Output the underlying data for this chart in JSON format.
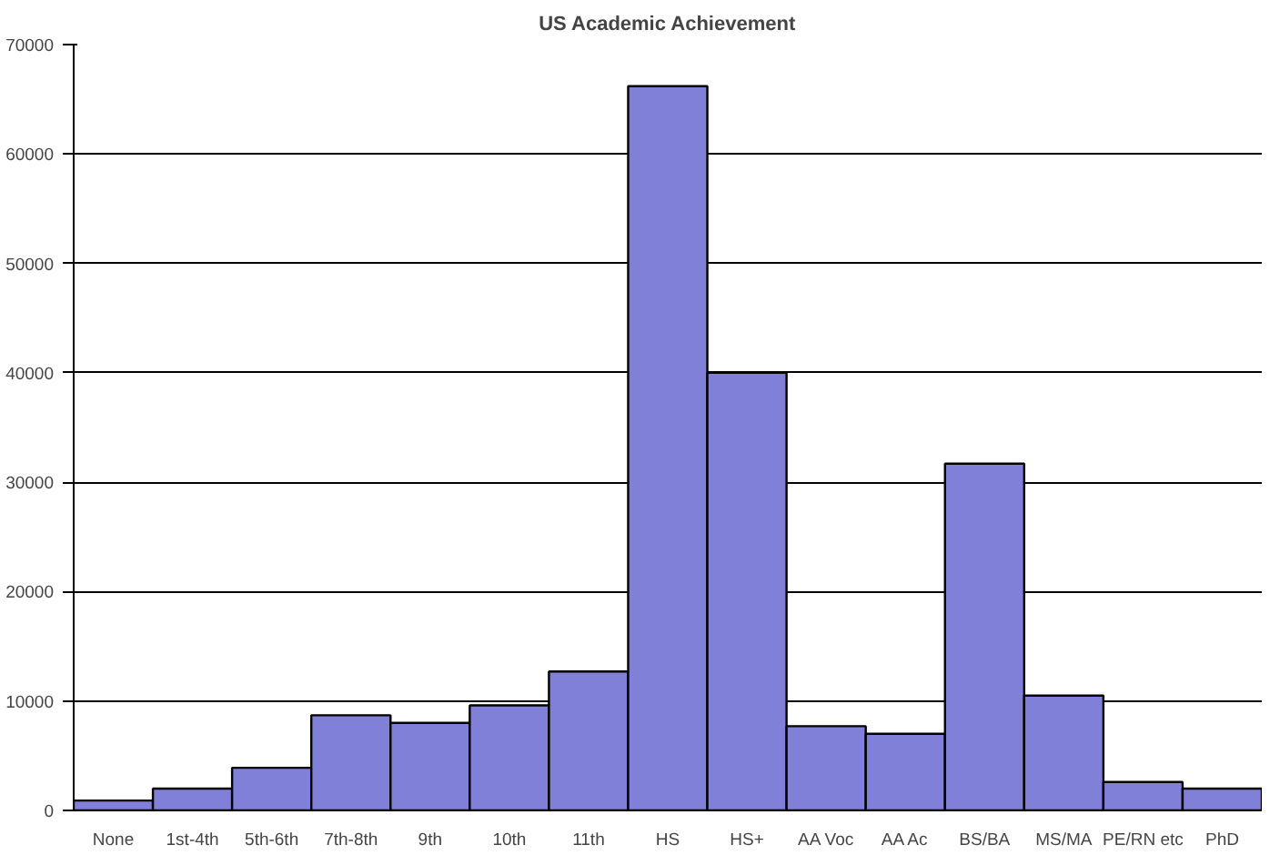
{
  "chart_data": {
    "type": "bar",
    "title": "US Academic Achievement",
    "categories": [
      "None",
      "1st-4th",
      "5th-6th",
      "7th-8th",
      "9th",
      "10th",
      "11th",
      "HS",
      "HS+",
      "AA Voc",
      "AA Ac",
      "BS/BA",
      "MS/MA",
      "PE/RN etc",
      "PhD"
    ],
    "values": [
      900,
      2000,
      3900,
      8700,
      8000,
      9600,
      12700,
      66200,
      40000,
      7700,
      7000,
      31700,
      10500,
      2600,
      2000
    ],
    "color": "#8080d8",
    "ylim": [
      0,
      70000
    ],
    "yticks": [
      0,
      10000,
      20000,
      30000,
      40000,
      50000,
      60000,
      70000
    ],
    "grid": "y"
  }
}
